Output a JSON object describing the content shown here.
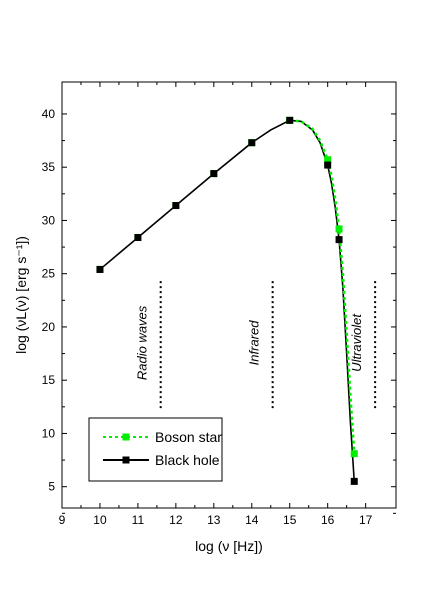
{
  "chart_data": {
    "type": "line",
    "xlabel": "log (ν [Hz])",
    "ylabel": "log (νL(ν) [erg s⁻¹])",
    "xlim": [
      9,
      17.8
    ],
    "ylim": [
      3,
      43
    ],
    "x_ticks": [
      "9",
      "10",
      "11",
      "12",
      "13",
      "14",
      "15",
      "16",
      "17"
    ],
    "y_ticks": [
      "5",
      "10",
      "15",
      "20",
      "25",
      "30",
      "35",
      "40"
    ],
    "grid": false,
    "legend_position": "bottom-left",
    "series": [
      {
        "name": "Boson star",
        "color": "#00ee00",
        "line_style": "dotted",
        "marker": "square",
        "marker_x": [
          10,
          11,
          12,
          13,
          14,
          15,
          16,
          16.3,
          16.7
        ],
        "marker_y": [
          25.4,
          28.4,
          31.4,
          34.4,
          37.3,
          39.4,
          35.7,
          29.2,
          8.1
        ],
        "curve_x": [
          15.0,
          15.3,
          15.6,
          15.8,
          16.0,
          16.1,
          16.2,
          16.3,
          16.4,
          16.5,
          16.6,
          16.7
        ],
        "curve_y": [
          39.4,
          39.3,
          38.6,
          37.5,
          35.7,
          34.2,
          32.0,
          29.2,
          25.0,
          19.5,
          13.5,
          8.1
        ]
      },
      {
        "name": "Black hole",
        "color": "#000000",
        "line_style": "solid",
        "marker": "square",
        "marker_x": [
          10,
          11,
          12,
          13,
          14,
          15,
          16,
          16.3,
          16.7
        ],
        "marker_y": [
          25.4,
          28.4,
          31.4,
          34.4,
          37.3,
          39.4,
          35.2,
          28.2,
          5.5
        ],
        "curve_x": [
          10,
          11,
          12,
          13,
          14,
          14.5,
          15.0,
          15.3,
          15.6,
          15.8,
          16.0,
          16.1,
          16.2,
          16.3,
          16.4,
          16.5,
          16.6,
          16.7
        ],
        "curve_y": [
          25.4,
          28.4,
          31.4,
          34.4,
          37.3,
          38.5,
          39.4,
          39.3,
          38.5,
          37.3,
          35.2,
          33.5,
          31.2,
          28.2,
          23.7,
          17.5,
          11.0,
          5.5
        ]
      }
    ],
    "regions": [
      {
        "label": "Radio waves",
        "divider_x": 11.6
      },
      {
        "label": "Infrared",
        "divider_x": 14.55
      },
      {
        "label": "Ultraviolet",
        "divider_x": 17.25
      }
    ]
  }
}
